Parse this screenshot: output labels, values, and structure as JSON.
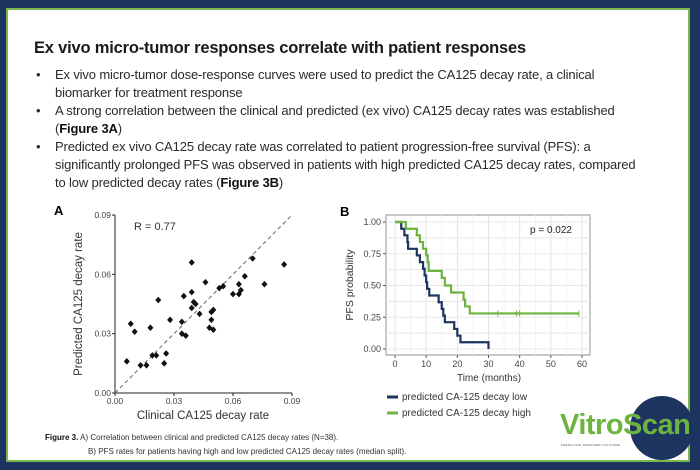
{
  "title": "Ex vivo micro-tumor responses correlate with patient responses",
  "bullets": [
    {
      "text": "Ex vivo micro-tumor dose-response curves were used to predict the CA125 decay rate, a clinical biomarker for treatment response",
      "ref": ""
    },
    {
      "text": "A strong correlation between the clinical and predicted (ex vivo) CA125 decay rates was established (",
      "ref": "Figure 3A",
      "end": ")"
    },
    {
      "text": "Predicted ex vivo CA125 decay rate was correlated to patient progression-free survival (PFS): a significantly prolonged PFS was observed in patients with high predicted CA125 decay rates, compared to low predicted decay rates (",
      "ref": "Figure 3B",
      "end": ")"
    }
  ],
  "caption": {
    "label": "Figure 3.",
    "line1": " A) Correlation between clinical and predicted CA125 decay rates (N=38).",
    "line2": "B) PFS rates for patients having high and low predicted CA125 decay rates (median split)."
  },
  "logo": {
    "text": "VitroScan",
    "tagline": "PREDICTING TREATMENT OUTCOME"
  },
  "chart_data": [
    {
      "panel": "A",
      "type": "scatter",
      "xlabel": "Clinical CA125 decay rate",
      "ylabel": "Predicted CA125 decay rate",
      "xlim": [
        0,
        0.09
      ],
      "ylim": [
        0,
        0.09
      ],
      "xticks": [
        "0.00",
        "0.03",
        "0.06",
        "0.09"
      ],
      "yticks": [
        "0.00",
        "0.03",
        "0.06",
        "0.09"
      ],
      "annotation": "R = 0.77",
      "identity_line": true,
      "points": [
        [
          0.006,
          0.016
        ],
        [
          0.008,
          0.035
        ],
        [
          0.01,
          0.031
        ],
        [
          0.013,
          0.014
        ],
        [
          0.016,
          0.014
        ],
        [
          0.018,
          0.033
        ],
        [
          0.019,
          0.019
        ],
        [
          0.021,
          0.019
        ],
        [
          0.022,
          0.047
        ],
        [
          0.025,
          0.015
        ],
        [
          0.026,
          0.02
        ],
        [
          0.028,
          0.037
        ],
        [
          0.034,
          0.036
        ],
        [
          0.034,
          0.03
        ],
        [
          0.035,
          0.049
        ],
        [
          0.036,
          0.029
        ],
        [
          0.039,
          0.066
        ],
        [
          0.039,
          0.051
        ],
        [
          0.039,
          0.043
        ],
        [
          0.04,
          0.046
        ],
        [
          0.041,
          0.045
        ],
        [
          0.043,
          0.04
        ],
        [
          0.046,
          0.056
        ],
        [
          0.048,
          0.033
        ],
        [
          0.049,
          0.037
        ],
        [
          0.049,
          0.041
        ],
        [
          0.05,
          0.042
        ],
        [
          0.05,
          0.032
        ],
        [
          0.053,
          0.053
        ],
        [
          0.055,
          0.054
        ],
        [
          0.06,
          0.05
        ],
        [
          0.063,
          0.05
        ],
        [
          0.063,
          0.055
        ],
        [
          0.064,
          0.052
        ],
        [
          0.066,
          0.059
        ],
        [
          0.07,
          0.068
        ],
        [
          0.076,
          0.055
        ],
        [
          0.086,
          0.065
        ]
      ]
    },
    {
      "panel": "B",
      "type": "line",
      "xlabel": "Time (months)",
      "ylabel": "PFS probability",
      "xlim": [
        0,
        60
      ],
      "ylim": [
        0,
        1
      ],
      "xticks": [
        "0",
        "10",
        "20",
        "30",
        "40",
        "50",
        "60"
      ],
      "yticks": [
        "0.00",
        "0.25",
        "0.50",
        "0.75",
        "1.00"
      ],
      "annotation": "p = 0.022",
      "grid": true,
      "legend": "bottom",
      "series": [
        {
          "name": "predicted CA-125 decay low",
          "color": "#1d3461",
          "steps": [
            [
              0,
              1.0
            ],
            [
              2,
              0.947
            ],
            [
              3,
              0.895
            ],
            [
              4,
              0.842
            ],
            [
              4.2,
              0.789
            ],
            [
              7,
              0.737
            ],
            [
              8,
              0.684
            ],
            [
              9,
              0.632
            ],
            [
              9.5,
              0.579
            ],
            [
              10,
              0.526
            ],
            [
              10.3,
              0.474
            ],
            [
              11,
              0.421
            ],
            [
              14,
              0.368
            ],
            [
              15,
              0.316
            ],
            [
              15.5,
              0.263
            ],
            [
              16,
              0.211
            ],
            [
              19,
              0.158
            ],
            [
              20,
              0.105
            ],
            [
              21,
              0.053
            ],
            [
              30,
              0.0
            ]
          ],
          "end": 30,
          "censored": []
        },
        {
          "name": "predicted CA-125 decay high",
          "color": "#6db33f",
          "steps": [
            [
              0,
              1.0
            ],
            [
              3.5,
              0.947
            ],
            [
              7,
              0.895
            ],
            [
              8,
              0.842
            ],
            [
              9,
              0.789
            ],
            [
              10,
              0.737
            ],
            [
              10.5,
              0.684
            ],
            [
              10.8,
              0.615
            ],
            [
              15,
              0.56
            ],
            [
              16,
              0.5
            ],
            [
              18,
              0.445
            ],
            [
              22,
              0.39
            ],
            [
              22.5,
              0.335
            ],
            [
              24,
              0.28
            ]
          ],
          "end": 59,
          "censored": [
            33,
            39,
            40,
            59
          ]
        }
      ]
    }
  ]
}
